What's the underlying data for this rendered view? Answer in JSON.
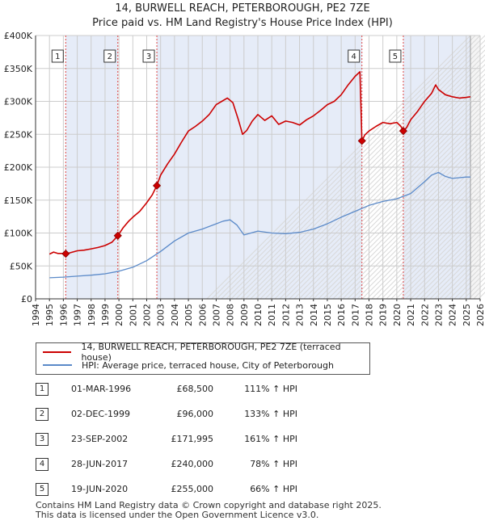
{
  "title_line1": "14, BURWELL REACH, PETERBOROUGH, PE2 7ZE",
  "title_line2": "Price paid vs. HM Land Registry's House Price Index (HPI)",
  "colors": {
    "property": "#cc0000",
    "hpi": "#5b8ac9",
    "shade": "#e6ecf8",
    "grid": "#cccccc",
    "vline": "#dd4444"
  },
  "chart_data": {
    "type": "line",
    "title": "14, BURWELL REACH, PETERBOROUGH, PE2 7ZE — Price paid vs. HM Land Registry's House Price Index (HPI)",
    "xlim": [
      1994,
      2026
    ],
    "ylim": [
      0,
      400000
    ],
    "y_ticks": [
      0,
      50000,
      100000,
      150000,
      200000,
      250000,
      300000,
      350000,
      400000
    ],
    "y_tick_labels": [
      "£0",
      "£50K",
      "£100K",
      "£150K",
      "£200K",
      "£250K",
      "£300K",
      "£350K",
      "£400K"
    ],
    "x_ticks": [
      "1994",
      "1995",
      "1996",
      "1997",
      "1998",
      "1999",
      "2000",
      "2001",
      "2002",
      "2003",
      "2004",
      "2005",
      "2006",
      "2007",
      "2008",
      "2009",
      "2010",
      "2011",
      "2012",
      "2013",
      "2014",
      "2015",
      "2016",
      "2017",
      "2018",
      "2019",
      "2020",
      "2021",
      "2022",
      "2023",
      "2024",
      "2025",
      "2026"
    ],
    "shaded_ranges": [
      [
        1996.17,
        1999.92
      ],
      [
        2002.73,
        2017.49
      ],
      [
        2020.47,
        2025.3
      ]
    ],
    "future_from": 2025.3,
    "series": [
      {
        "name": "14, BURWELL REACH, PETERBOROUGH, PE2 7ZE (terraced house)",
        "x": [
          1995.0,
          1995.3,
          1995.6,
          1996.0,
          1996.17,
          1996.5,
          1997.0,
          1997.5,
          1998.0,
          1998.5,
          1999.0,
          1999.5,
          1999.92,
          2000.3,
          2000.7,
          2001.0,
          2001.5,
          2002.0,
          2002.4,
          2002.73,
          2003.0,
          2003.5,
          2004.0,
          2004.5,
          2005.0,
          2005.5,
          2006.0,
          2006.5,
          2007.0,
          2007.4,
          2007.8,
          2008.2,
          2008.6,
          2008.9,
          2009.2,
          2009.6,
          2010.0,
          2010.5,
          2011.0,
          2011.5,
          2012.0,
          2012.5,
          2013.0,
          2013.5,
          2014.0,
          2014.5,
          2015.0,
          2015.5,
          2016.0,
          2016.5,
          2017.0,
          2017.35,
          2017.49,
          2017.7,
          2018.0,
          2018.5,
          2019.0,
          2019.5,
          2020.0,
          2020.3,
          2020.47,
          2020.7,
          2021.0,
          2021.5,
          2022.0,
          2022.5,
          2022.8,
          2023.0,
          2023.5,
          2024.0,
          2024.5,
          2025.0,
          2025.3
        ],
        "y": [
          68000,
          71000,
          69000,
          69000,
          68500,
          70000,
          73000,
          74000,
          76000,
          78000,
          81000,
          86000,
          96000,
          108000,
          118000,
          124000,
          133000,
          146000,
          158000,
          171995,
          188000,
          205000,
          220000,
          238000,
          255000,
          262000,
          270000,
          280000,
          295000,
          300000,
          305000,
          298000,
          272000,
          250000,
          256000,
          270000,
          280000,
          271000,
          278000,
          265000,
          270000,
          268000,
          264000,
          272000,
          278000,
          286000,
          295000,
          300000,
          310000,
          325000,
          338000,
          345000,
          240000,
          249000,
          255000,
          262000,
          268000,
          266000,
          268000,
          262000,
          255000,
          260000,
          272000,
          285000,
          300000,
          312000,
          325000,
          318000,
          310000,
          307000,
          305000,
          306000,
          307000
        ]
      },
      {
        "name": "HPI: Average price, terraced house, City of Peterborough",
        "x": [
          1995.0,
          1996.0,
          1997.0,
          1998.0,
          1999.0,
          2000.0,
          2001.0,
          2002.0,
          2003.0,
          2004.0,
          2005.0,
          2006.0,
          2007.0,
          2007.5,
          2008.0,
          2008.5,
          2009.0,
          2009.5,
          2010.0,
          2011.0,
          2012.0,
          2013.0,
          2014.0,
          2015.0,
          2016.0,
          2017.0,
          2018.0,
          2019.0,
          2020.0,
          2021.0,
          2022.0,
          2022.5,
          2023.0,
          2023.5,
          2024.0,
          2024.5,
          2025.0,
          2025.3
        ],
        "y": [
          32000,
          33000,
          34500,
          36000,
          38000,
          42000,
          48000,
          58000,
          72000,
          88000,
          100000,
          106000,
          114000,
          118000,
          120000,
          112000,
          97000,
          100000,
          103000,
          100000,
          99000,
          101000,
          106000,
          114000,
          124000,
          133000,
          142000,
          148000,
          152000,
          160000,
          178000,
          188000,
          192000,
          186000,
          183000,
          184000,
          185000,
          185000
        ]
      }
    ],
    "sale_markers": [
      {
        "label": "1",
        "x": 1996.17,
        "y": 68500
      },
      {
        "label": "2",
        "x": 1999.92,
        "y": 96000
      },
      {
        "label": "3",
        "x": 2002.73,
        "y": 171995
      },
      {
        "label": "4",
        "x": 2017.49,
        "y": 240000
      },
      {
        "label": "5",
        "x": 2020.47,
        "y": 255000
      }
    ]
  },
  "legend": {
    "property_label": "14, BURWELL REACH, PETERBOROUGH, PE2 7ZE (terraced house)",
    "hpi_label": "HPI: Average price, terraced house, City of Peterborough"
  },
  "sales": [
    {
      "label": "1",
      "date": "01-MAR-1996",
      "price": "£68,500",
      "hpi": "111% ↑ HPI"
    },
    {
      "label": "2",
      "date": "02-DEC-1999",
      "price": "£96,000",
      "hpi": "133% ↑ HPI"
    },
    {
      "label": "3",
      "date": "23-SEP-2002",
      "price": "£171,995",
      "hpi": "161% ↑ HPI"
    },
    {
      "label": "4",
      "date": "28-JUN-2017",
      "price": "£240,000",
      "hpi": "78% ↑ HPI"
    },
    {
      "label": "5",
      "date": "19-JUN-2020",
      "price": "£255,000",
      "hpi": "66% ↑ HPI"
    }
  ],
  "footer": {
    "line1": "Contains HM Land Registry data © Crown copyright and database right 2025.",
    "line2": "This data is licensed under the Open Government Licence v3.0."
  }
}
